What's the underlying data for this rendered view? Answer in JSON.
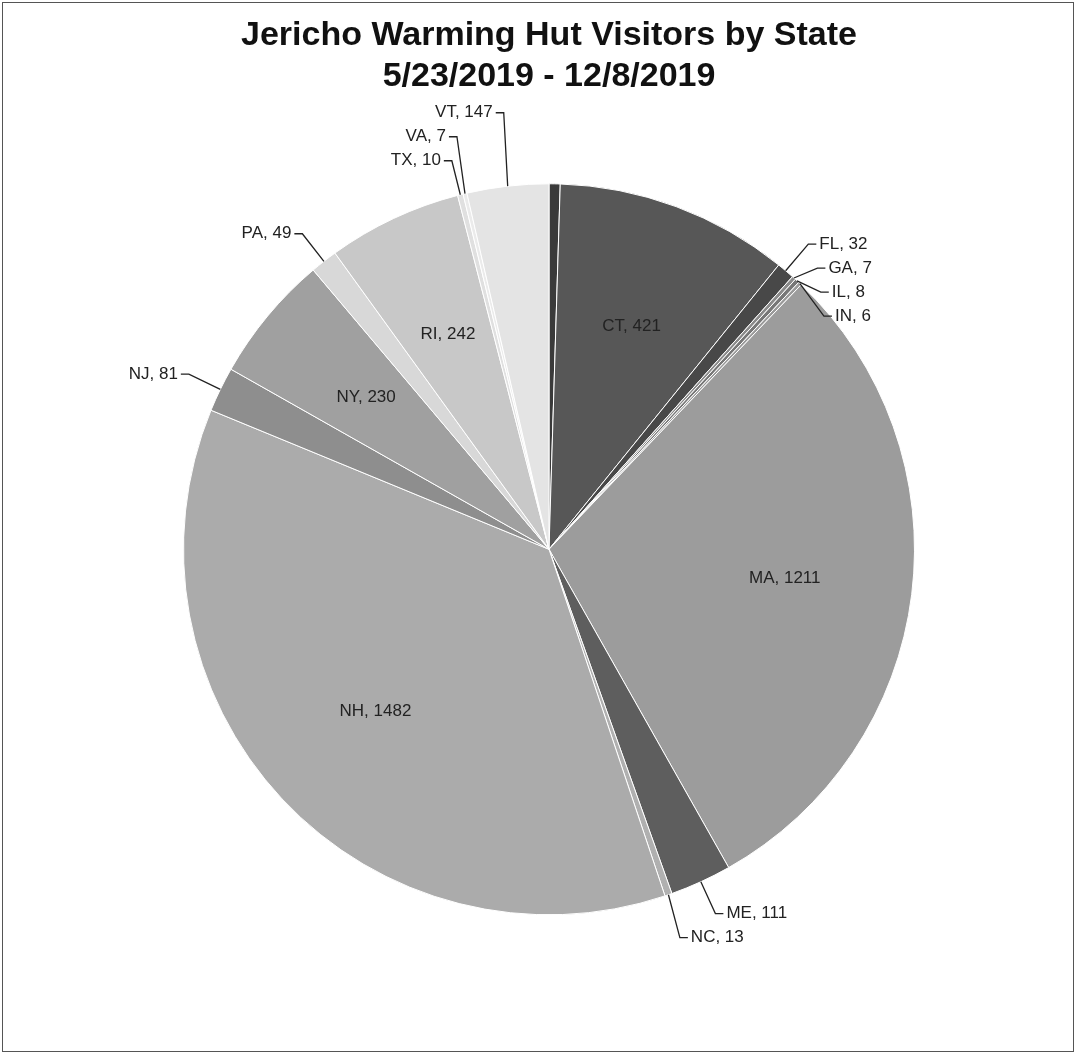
{
  "chart_data": {
    "type": "pie",
    "title": "Jericho Warming Hut Visitors by State\n5/23/2019 - 12/8/2019",
    "categories": [
      null,
      null,
      null,
      null,
      null,
      null,
      null,
      null,
      null,
      null,
      null,
      null,
      null,
      null,
      null,
      null,
      null
    ],
    "values": [
      20,
      421,
      32,
      7,
      8,
      6,
      1211,
      111,
      13,
      1482,
      81,
      230,
      49,
      242,
      10,
      7,
      147
    ],
    "value_labels": [
      null,
      "CT, 421",
      "FL, 32",
      "GA, 7",
      "IL, 8",
      "IN, 6",
      "MA, 1211",
      "ME, 111",
      "NC, 13",
      "NH, 1482",
      "NJ, 81",
      "NY, 230",
      "PA, 49",
      "RI, 242",
      "TX, 10",
      "VA, 7",
      "VT, 147"
    ],
    "colors": [
      "#3a3a3a",
      "#575757",
      "#484848",
      "#8a8a8a",
      "#777777",
      "#9a9a9a",
      "#9c9c9c",
      "#5e5e5e",
      "#b0b0b0",
      "#ababab",
      "#8e8e8e",
      "#a0a0a0",
      "#d8d8d8",
      "#c8c8c8",
      "#e0e0e0",
      "#ebebeb",
      "#e4e4e4"
    ],
    "legend": false
  }
}
